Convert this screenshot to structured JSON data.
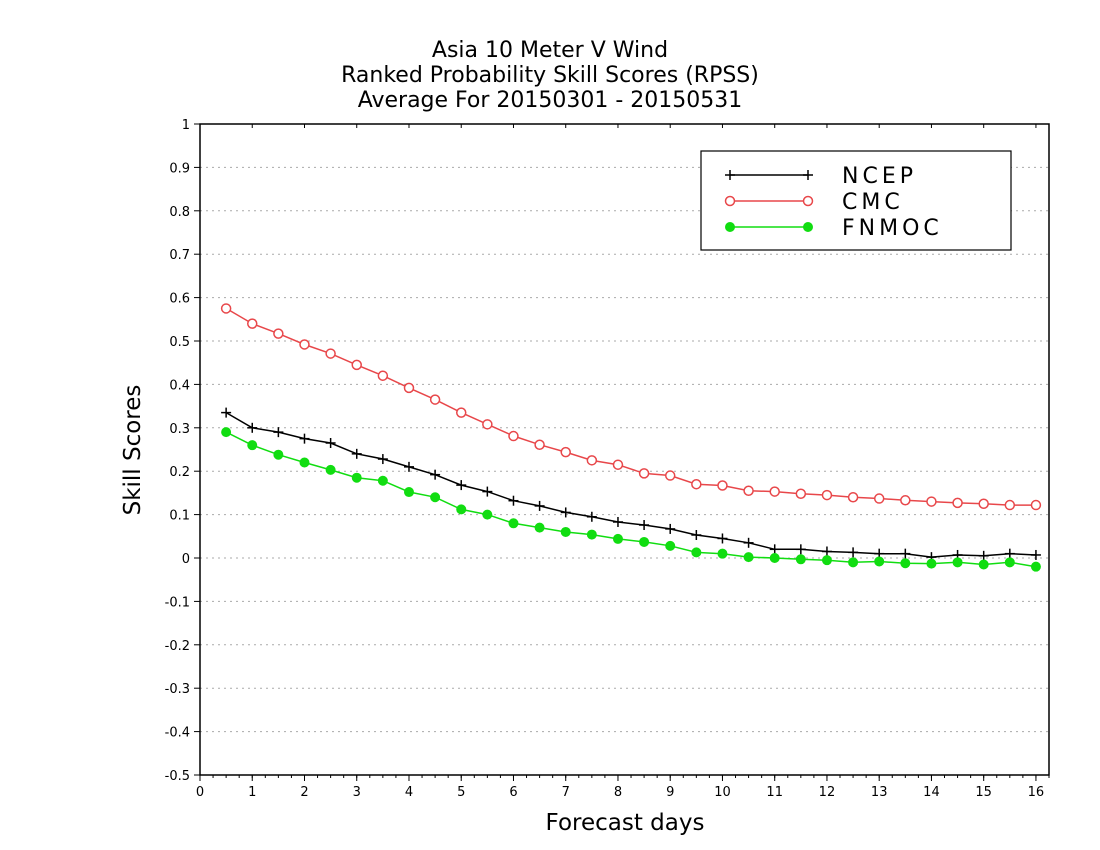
{
  "chart_data": {
    "type": "line",
    "title": [
      "Asia 10 Meter V Wind",
      "Ranked Probability Skill Scores (RPSS)",
      "Average For 20150301 - 20150531"
    ],
    "xlabel": "Forecast days",
    "ylabel": "Skill Scores",
    "xlim": [
      0,
      16.25
    ],
    "ylim": [
      -0.5,
      1
    ],
    "xticks": [
      0,
      1,
      2,
      3,
      4,
      5,
      6,
      7,
      8,
      9,
      10,
      11,
      12,
      13,
      14,
      15,
      16
    ],
    "xtick_labels": [
      "0",
      "1",
      "2",
      "3",
      "4",
      "5",
      "6",
      "7",
      "8",
      "9",
      "10",
      "11",
      "12",
      "13",
      "14",
      "15",
      "16"
    ],
    "yticks": [
      -0.5,
      -0.4,
      -0.3,
      -0.2,
      -0.1,
      0,
      0.1,
      0.2,
      0.3,
      0.4,
      0.5,
      0.6,
      0.7,
      0.8,
      0.9,
      1
    ],
    "ytick_labels": [
      "-0.5",
      "-0.4",
      "-0.3",
      "-0.2",
      "-0.1",
      "0",
      "0.1",
      "0.2",
      "0.3",
      "0.4",
      "0.5",
      "0.6",
      "0.7",
      "0.8",
      "0.9",
      "1"
    ],
    "grid": true,
    "legend_position": "top-right",
    "x": [
      0.5,
      1,
      1.5,
      2,
      2.5,
      3,
      3.5,
      4,
      4.5,
      5,
      5.5,
      6,
      6.5,
      7,
      7.5,
      8,
      8.5,
      9,
      9.5,
      10,
      10.5,
      11,
      11.5,
      12,
      12.5,
      13,
      13.5,
      14,
      14.5,
      15,
      15.5,
      16
    ],
    "series": [
      {
        "name": "NCEP",
        "color": "#000000",
        "marker": "plus",
        "values": [
          0.335,
          0.3,
          0.29,
          0.275,
          0.265,
          0.24,
          0.228,
          0.21,
          0.192,
          0.168,
          0.153,
          0.132,
          0.12,
          0.105,
          0.095,
          0.083,
          0.076,
          0.067,
          0.053,
          0.045,
          0.035,
          0.02,
          0.02,
          0.015,
          0.013,
          0.01,
          0.01,
          0.002,
          0.007,
          0.005,
          0.01,
          0.007
        ]
      },
      {
        "name": "CMC",
        "color": "#e8474a",
        "marker": "open-circle",
        "values": [
          0.575,
          0.54,
          0.517,
          0.492,
          0.471,
          0.445,
          0.42,
          0.392,
          0.365,
          0.335,
          0.308,
          0.281,
          0.261,
          0.244,
          0.225,
          0.215,
          0.195,
          0.19,
          0.17,
          0.167,
          0.155,
          0.153,
          0.148,
          0.145,
          0.14,
          0.137,
          0.133,
          0.13,
          0.127,
          0.125,
          0.122,
          0.122
        ]
      },
      {
        "name": "FNMOC",
        "color": "#11dd11",
        "marker": "filled-circle",
        "values": [
          0.29,
          0.26,
          0.238,
          0.22,
          0.203,
          0.185,
          0.178,
          0.152,
          0.14,
          0.112,
          0.1,
          0.08,
          0.07,
          0.06,
          0.054,
          0.044,
          0.037,
          0.028,
          0.013,
          0.01,
          0.002,
          0.0,
          -0.003,
          -0.005,
          -0.01,
          -0.008,
          -0.012,
          -0.013,
          -0.01,
          -0.015,
          -0.01,
          -0.02
        ]
      }
    ]
  }
}
